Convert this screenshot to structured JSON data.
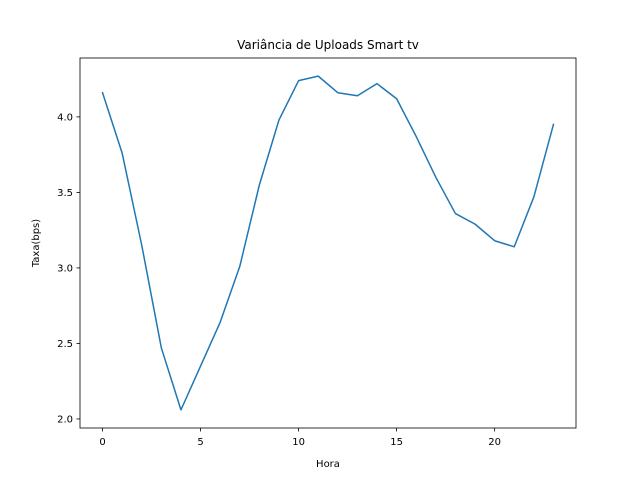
{
  "chart_data": {
    "type": "line",
    "title": "Variância de Uploads Smart tv",
    "xlabel": "Hora",
    "ylabel": "Taxa(bps)",
    "xlim": [
      -1.15,
      24.15
    ],
    "ylim": [
      1.94,
      4.39
    ],
    "x_ticks": [
      0,
      5,
      10,
      15,
      20
    ],
    "y_ticks": [
      2.0,
      2.5,
      3.0,
      3.5,
      4.0
    ],
    "x_tick_labels": [
      "0",
      "5",
      "10",
      "15",
      "20"
    ],
    "y_tick_labels": [
      "2.0",
      "2.5",
      "3.0",
      "3.5",
      "4.0"
    ],
    "grid": false,
    "series": [
      {
        "color": "#1f77b4",
        "x": [
          0,
          1,
          2,
          3,
          4,
          5,
          6,
          7,
          8,
          9,
          10,
          11,
          12,
          13,
          14,
          15,
          16,
          17,
          18,
          19,
          20,
          21,
          22,
          23
        ],
        "y": [
          4.16,
          3.76,
          3.15,
          2.47,
          2.06,
          2.35,
          2.64,
          3.01,
          3.55,
          3.98,
          4.24,
          4.27,
          4.16,
          4.14,
          4.22,
          4.12,
          3.87,
          3.6,
          3.36,
          3.29,
          3.18,
          3.14,
          3.47,
          3.95
        ]
      }
    ]
  }
}
